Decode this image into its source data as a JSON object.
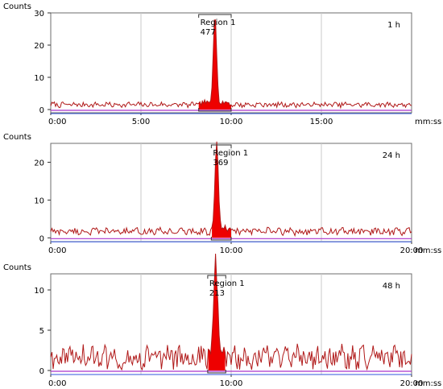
{
  "chart_data": [
    {
      "type": "line",
      "ylabel": "Counts",
      "xunit": "mm:ss",
      "yticks": [
        0,
        10,
        20,
        30
      ],
      "xtick_labels": [
        "0:00",
        "5:00",
        "10:00",
        "15:00"
      ],
      "ylim": [
        -1,
        30
      ],
      "xlim_min": [
        0,
        20
      ],
      "label": "1 h",
      "region": {
        "name": "Region 1",
        "value": "477",
        "start_min": 8.2,
        "end_min": 10.0
      },
      "peak": {
        "center_min": 9.1,
        "height": 28
      },
      "baseline": 1.5,
      "colors": {
        "trace": "#b01818",
        "fill": "#ee0000",
        "baseline_purple": "#aa33cc",
        "baseline_blue": "#3355dd"
      }
    },
    {
      "type": "line",
      "ylabel": "Counts",
      "xunit": "mm:ss",
      "yticks": [
        0,
        10,
        20
      ],
      "xtick_labels": [
        "0:00",
        "10:00",
        "20:00"
      ],
      "ylim": [
        -1,
        25
      ],
      "xlim_min": [
        0,
        20
      ],
      "label": "24 h",
      "region": {
        "name": "Region 1",
        "value": "369",
        "start_min": 8.9,
        "end_min": 10.0
      },
      "peak": {
        "center_min": 9.2,
        "height": 23
      },
      "baseline": 1.7,
      "colors": {
        "trace": "#b01818",
        "fill": "#ee0000",
        "baseline_purple": "#aa33cc",
        "baseline_blue": "#3355dd"
      }
    },
    {
      "type": "line",
      "ylabel": "Counts",
      "xunit": "mm:ss",
      "yticks": [
        0,
        5,
        10
      ],
      "xtick_labels": [
        "0:00",
        "10:00",
        "20:00"
      ],
      "ylim": [
        -0.5,
        12
      ],
      "xlim_min": [
        0,
        20
      ],
      "label": "48 h",
      "region": {
        "name": "Region 1",
        "value": "213",
        "start_min": 8.7,
        "end_min": 9.7
      },
      "peak": {
        "center_min": 9.15,
        "height": 11.5
      },
      "baseline": 1.6,
      "colors": {
        "trace": "#b01818",
        "fill": "#ee0000",
        "baseline_purple": "#aa33cc",
        "baseline_blue": "#3355dd"
      }
    }
  ]
}
